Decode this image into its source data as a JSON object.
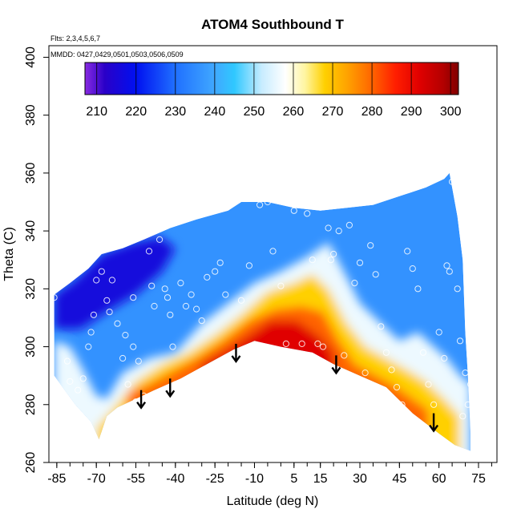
{
  "chart_data": {
    "type": "heatmap",
    "title": "ATOM4 Southbound T",
    "annotation_flights": "Flts: 2,3,4,5,6,7",
    "annotation_dates": "MMDD: 0427,0429,0501,0503,0506,0509",
    "xlabel": "Latitude (deg N)",
    "ylabel": "Theta (C)",
    "xlim": [
      -88,
      82
    ],
    "ylim": [
      260,
      404
    ],
    "x_ticks": [
      -85,
      -70,
      -55,
      -40,
      -25,
      -10,
      5,
      15,
      30,
      45,
      60,
      75
    ],
    "y_ticks": [
      260,
      280,
      300,
      320,
      340,
      360,
      380,
      400
    ],
    "colorbar": {
      "range": [
        207,
        302
      ],
      "ticks": [
        210,
        220,
        230,
        240,
        250,
        260,
        270,
        280,
        290,
        300
      ],
      "stops": [
        {
          "v": 207,
          "color": "#8a2be2"
        },
        {
          "v": 212,
          "color": "#2a00c8"
        },
        {
          "v": 220,
          "color": "#0010f0"
        },
        {
          "v": 230,
          "color": "#2070ff"
        },
        {
          "v": 240,
          "color": "#40a8ff"
        },
        {
          "v": 245,
          "color": "#30c8ff"
        },
        {
          "v": 252,
          "color": "#c8ecff"
        },
        {
          "v": 258,
          "color": "#ffffff"
        },
        {
          "v": 263,
          "color": "#fff5a0"
        },
        {
          "v": 268,
          "color": "#ffd000"
        },
        {
          "v": 274,
          "color": "#ffa000"
        },
        {
          "v": 280,
          "color": "#ff6400"
        },
        {
          "v": 286,
          "color": "#ff1e00"
        },
        {
          "v": 292,
          "color": "#e00000"
        },
        {
          "v": 298,
          "color": "#b40000"
        },
        {
          "v": 302,
          "color": "#800000"
        }
      ]
    },
    "boundary": {
      "upper": [
        [
          -86,
          318
        ],
        [
          -80,
          322
        ],
        [
          -73,
          327
        ],
        [
          -68,
          332
        ],
        [
          -60,
          334
        ],
        [
          -52,
          337
        ],
        [
          -42,
          341
        ],
        [
          -32,
          344
        ],
        [
          -20,
          347
        ],
        [
          -15,
          350
        ],
        [
          -5,
          350
        ],
        [
          5,
          348
        ],
        [
          15,
          347
        ],
        [
          25,
          348
        ],
        [
          35,
          349
        ],
        [
          45,
          352
        ],
        [
          55,
          355
        ],
        [
          62,
          358
        ],
        [
          64,
          360
        ]
      ],
      "right": [
        [
          64,
          360
        ],
        [
          67,
          345
        ],
        [
          69,
          330
        ],
        [
          70,
          305
        ],
        [
          71,
          290
        ],
        [
          72,
          270
        ],
        [
          72,
          264
        ]
      ],
      "lower": [
        [
          72,
          264
        ],
        [
          66,
          266
        ],
        [
          60,
          270
        ],
        [
          50,
          277
        ],
        [
          40,
          286
        ],
        [
          30,
          290
        ],
        [
          20,
          294
        ],
        [
          12,
          298
        ],
        [
          0,
          300
        ],
        [
          -10,
          302
        ],
        [
          -18,
          299
        ],
        [
          -28,
          294
        ],
        [
          -38,
          289
        ],
        [
          -48,
          285
        ],
        [
          -55,
          282
        ],
        [
          -62,
          279
        ],
        [
          -66,
          276
        ],
        [
          -69,
          268
        ],
        [
          -72,
          274
        ],
        [
          -78,
          280
        ],
        [
          -82,
          285
        ],
        [
          -86,
          290
        ]
      ]
    },
    "contours": {
      "t260": [
        [
          -86,
          302
        ],
        [
          -80,
          300
        ],
        [
          -75,
          292
        ],
        [
          -70,
          283
        ],
        [
          -66,
          282
        ],
        [
          -60,
          291
        ],
        [
          -50,
          296
        ],
        [
          -40,
          298
        ],
        [
          -30,
          308
        ],
        [
          -20,
          315
        ],
        [
          -10,
          322
        ],
        [
          0,
          326
        ],
        [
          10,
          331
        ],
        [
          18,
          336
        ],
        [
          25,
          324
        ],
        [
          30,
          315
        ],
        [
          38,
          308
        ],
        [
          45,
          302
        ],
        [
          52,
          305
        ],
        [
          58,
          300
        ],
        [
          63,
          296
        ],
        [
          68,
          290
        ],
        [
          72,
          287
        ]
      ],
      "t270": [
        [
          -70,
          272
        ],
        [
          -64,
          278
        ],
        [
          -55,
          288
        ],
        [
          -45,
          294
        ],
        [
          -35,
          298
        ],
        [
          -25,
          304
        ],
        [
          -15,
          311
        ],
        [
          -5,
          319
        ],
        [
          5,
          322
        ],
        [
          12,
          325
        ],
        [
          18,
          320
        ],
        [
          25,
          308
        ],
        [
          32,
          300
        ],
        [
          40,
          296
        ],
        [
          48,
          292
        ],
        [
          55,
          288
        ],
        [
          62,
          282
        ],
        [
          68,
          276
        ]
      ],
      "t280": [
        [
          -58,
          284
        ],
        [
          -50,
          287
        ],
        [
          -40,
          292
        ],
        [
          -32,
          296
        ],
        [
          -22,
          302
        ],
        [
          -12,
          309
        ],
        [
          -2,
          313
        ],
        [
          8,
          314
        ],
        [
          16,
          312
        ],
        [
          22,
          302
        ],
        [
          28,
          294
        ],
        [
          36,
          290
        ],
        [
          44,
          286
        ],
        [
          50,
          282
        ],
        [
          56,
          278
        ]
      ],
      "t290": [
        [
          -30,
          294
        ],
        [
          -20,
          299
        ],
        [
          -12,
          304
        ],
        [
          -4,
          309
        ],
        [
          6,
          309
        ],
        [
          14,
          304
        ],
        [
          20,
          298
        ]
      ]
    },
    "observations": [
      [
        -86,
        317
      ],
      [
        -81,
        295
      ],
      [
        -80,
        288
      ],
      [
        -77,
        285
      ],
      [
        -75,
        289
      ],
      [
        -73,
        300
      ],
      [
        -72,
        305
      ],
      [
        -71,
        311
      ],
      [
        -70,
        323
      ],
      [
        -68,
        326
      ],
      [
        -66,
        316
      ],
      [
        -65,
        312
      ],
      [
        -64,
        323
      ],
      [
        -62,
        308
      ],
      [
        -60,
        296
      ],
      [
        -59,
        304
      ],
      [
        -58,
        287
      ],
      [
        -56,
        317
      ],
      [
        -56,
        300
      ],
      [
        -55,
        281
      ],
      [
        -54,
        295
      ],
      [
        -52,
        283
      ],
      [
        -51,
        281
      ],
      [
        -50,
        333
      ],
      [
        -49,
        321
      ],
      [
        -48,
        314
      ],
      [
        -46,
        337
      ],
      [
        -44,
        320
      ],
      [
        -43,
        317
      ],
      [
        -42,
        311
      ],
      [
        -41,
        300
      ],
      [
        -40,
        287
      ],
      [
        -38,
        322
      ],
      [
        -36,
        314
      ],
      [
        -34,
        318
      ],
      [
        -32,
        313
      ],
      [
        -30,
        309
      ],
      [
        -28,
        324
      ],
      [
        -25,
        326
      ],
      [
        -23,
        329
      ],
      [
        -21,
        318
      ],
      [
        -18,
        296
      ],
      [
        -15,
        316
      ],
      [
        -12,
        328
      ],
      [
        -8,
        349
      ],
      [
        -5,
        350
      ],
      [
        -3,
        333
      ],
      [
        0,
        321
      ],
      [
        2,
        301
      ],
      [
        5,
        347
      ],
      [
        8,
        301
      ],
      [
        10,
        346
      ],
      [
        12,
        330
      ],
      [
        14,
        301
      ],
      [
        16,
        300
      ],
      [
        18,
        341
      ],
      [
        19,
        330
      ],
      [
        20,
        332
      ],
      [
        22,
        340
      ],
      [
        24,
        297
      ],
      [
        26,
        342
      ],
      [
        28,
        322
      ],
      [
        30,
        329
      ],
      [
        32,
        291
      ],
      [
        34,
        335
      ],
      [
        36,
        325
      ],
      [
        38,
        307
      ],
      [
        40,
        298
      ],
      [
        42,
        292
      ],
      [
        44,
        286
      ],
      [
        46,
        280
      ],
      [
        48,
        333
      ],
      [
        50,
        327
      ],
      [
        52,
        320
      ],
      [
        54,
        298
      ],
      [
        56,
        287
      ],
      [
        58,
        280
      ],
      [
        60,
        305
      ],
      [
        62,
        296
      ],
      [
        63,
        328
      ],
      [
        64,
        326
      ],
      [
        65,
        357
      ],
      [
        67,
        320
      ],
      [
        68,
        302
      ],
      [
        69,
        276
      ],
      [
        70,
        291
      ],
      [
        71,
        280
      ],
      [
        72,
        287
      ]
    ],
    "arrows": [
      {
        "lat": -53,
        "theta_top": 285
      },
      {
        "lat": -42,
        "theta_top": 289
      },
      {
        "lat": -17,
        "theta_top": 301
      },
      {
        "lat": 21,
        "theta_top": 297
      },
      {
        "lat": 58,
        "theta_top": 277
      }
    ]
  }
}
